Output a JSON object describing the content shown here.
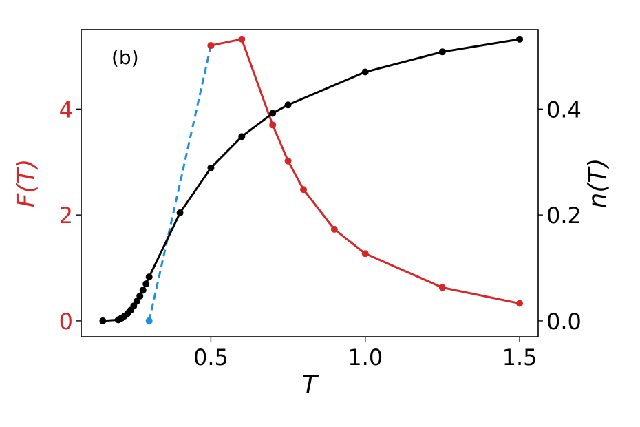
{
  "chart_data": {
    "type": "line",
    "panel_label": "(b)",
    "xlabel": "T",
    "ylabel_left": "F(T)",
    "ylabel_right": "n(T)",
    "xlim": [
      0.08,
      1.56
    ],
    "ylim_left": [
      -0.3,
      5.5
    ],
    "ylim_right": [
      -0.03,
      0.55
    ],
    "x_ticks": [
      0.5,
      1.0,
      1.5
    ],
    "x_tick_labels": [
      "0.5",
      "1.0",
      "1.5"
    ],
    "y_left_ticks": [
      0,
      2,
      4
    ],
    "y_left_tick_labels": [
      "0",
      "2",
      "4"
    ],
    "y_right_ticks": [
      0.0,
      0.2,
      0.4
    ],
    "y_right_tick_labels": [
      "0.0",
      "0.2",
      "0.4"
    ],
    "grid": false,
    "colors": {
      "F_series": "#d62728",
      "F_dashed": "#1f8ee6",
      "n_series": "#000000",
      "left_axis_text": "#d62728",
      "right_axis_text": "#000000"
    },
    "series": [
      {
        "axis": "left",
        "style": "solid",
        "color": "#d62728",
        "x": [
          0.5,
          0.6,
          0.7,
          0.75,
          0.8,
          0.9,
          1.0,
          1.25,
          1.5
        ],
        "y": [
          5.2,
          5.32,
          3.7,
          3.02,
          2.48,
          1.73,
          1.27,
          0.63,
          0.33
        ]
      },
      {
        "axis": "left",
        "style": "dashed",
        "color": "#1f8ee6",
        "x": [
          0.3,
          0.5
        ],
        "y": [
          0.0,
          5.2
        ]
      },
      {
        "axis": "right",
        "style": "solid",
        "color": "#000000",
        "x": [
          0.15,
          0.2,
          0.21,
          0.22,
          0.23,
          0.24,
          0.25,
          0.26,
          0.27,
          0.28,
          0.29,
          0.3,
          0.4,
          0.5,
          0.6,
          0.7,
          0.75,
          1.0,
          1.25,
          1.5
        ],
        "y": [
          0.0,
          0.002,
          0.005,
          0.009,
          0.014,
          0.02,
          0.028,
          0.037,
          0.047,
          0.058,
          0.07,
          0.083,
          0.204,
          0.289,
          0.348,
          0.392,
          0.408,
          0.47,
          0.508,
          0.532
        ]
      }
    ]
  }
}
